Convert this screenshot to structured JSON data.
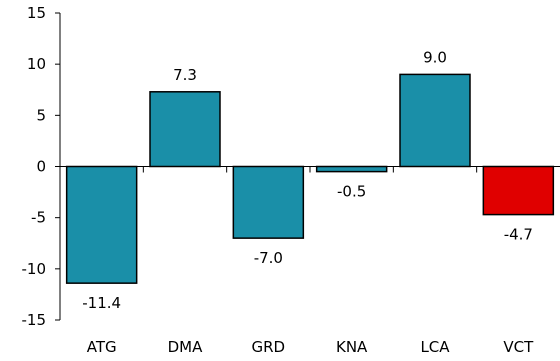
{
  "chart_data": {
    "type": "bar",
    "title": "",
    "xlabel": "",
    "ylabel": "",
    "categories": [
      "ATG",
      "DMA",
      "GRD",
      "KNA",
      "LCA",
      "VCT"
    ],
    "values": [
      -11.4,
      7.3,
      -7.0,
      -0.5,
      9.0,
      -4.7
    ],
    "data_labels": [
      "-11.4",
      "7.3",
      "-7.0",
      "-0.5",
      "9.0",
      "-4.7"
    ],
    "ylim": [
      -15,
      15
    ],
    "yticks": [
      15,
      10,
      5,
      0,
      -5,
      -10,
      -15
    ],
    "ytick_labels": [
      "15",
      "10",
      "5",
      "0",
      "-5",
      "-10",
      "-15"
    ],
    "grid": false,
    "legend": "none",
    "colors": {
      "default_bar": "#1a8fa8",
      "highlight_bar": "#e00000",
      "bar_outline": "#000000",
      "axis": "#000000",
      "text": "#000000"
    },
    "highlight_index": 5
  }
}
